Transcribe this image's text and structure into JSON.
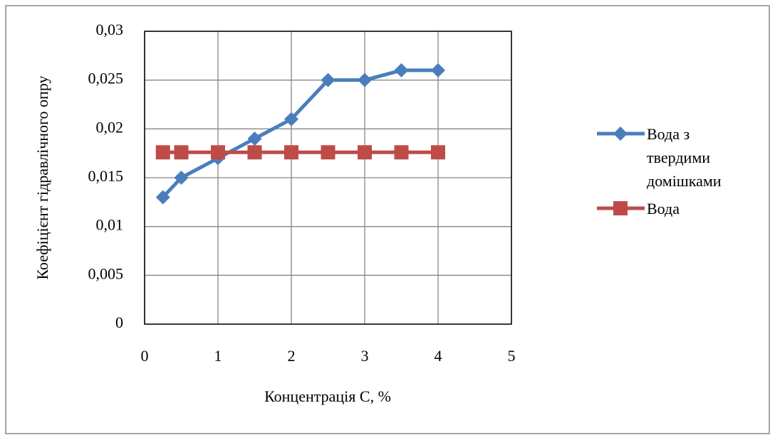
{
  "chart_data": {
    "type": "line",
    "y_label": "Коефіцієнт гідравлічного опру",
    "x_label": "Концентрація С, %",
    "x": [
      0.25,
      0.5,
      1,
      1.5,
      2,
      2.5,
      3,
      3.5,
      4
    ],
    "series": [
      {
        "name": "Вода з твердими домішками",
        "color": "#4a7ebb",
        "marker": "diamond",
        "values": [
          0.013,
          0.015,
          0.017,
          0.019,
          0.021,
          0.025,
          0.025,
          0.026,
          0.026
        ]
      },
      {
        "name": "Вода",
        "color": "#be4b48",
        "marker": "square",
        "values": [
          0.0176,
          0.0176,
          0.0176,
          0.0176,
          0.0176,
          0.0176,
          0.0176,
          0.0176,
          0.0176
        ]
      }
    ],
    "xlim": [
      0,
      5
    ],
    "xticks": [
      0,
      1,
      2,
      3,
      4,
      5
    ],
    "ylim": [
      0,
      0.03
    ],
    "yticks": [
      0,
      {
        "value": 0.005,
        "label": "0,005"
      },
      {
        "value": 0.01,
        "label": "0,01"
      },
      {
        "value": 0.015,
        "label": "0,015"
      },
      {
        "value": 0.02,
        "label": "0,02"
      },
      {
        "value": 0.025,
        "label": "0,025"
      },
      {
        "value": 0.03,
        "label": "0,03"
      }
    ],
    "grid": true,
    "legend": "right"
  }
}
